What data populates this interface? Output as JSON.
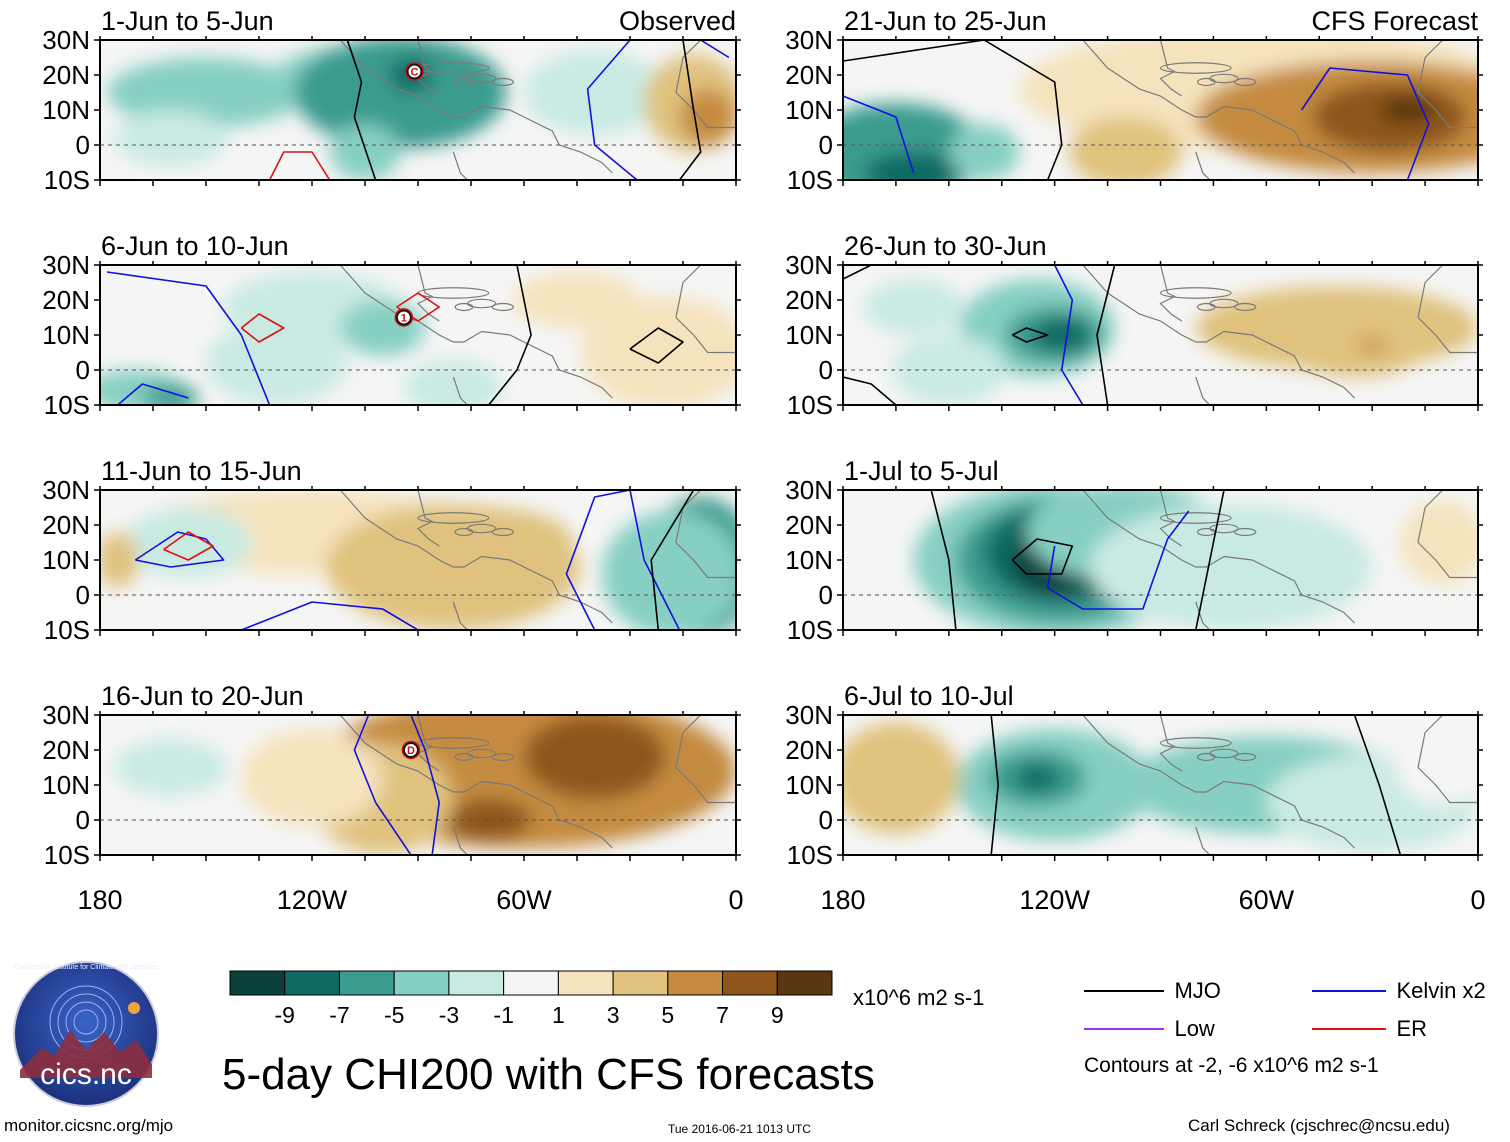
{
  "figure": {
    "title": "5-day CHI200 with CFS forecasts",
    "source_url": "monitor.cicsnc.org/mjo",
    "timestamp": "Tue 2016-06-21 1013 UTC",
    "author": "Carl Schreck (cjschrec@ncsu.edu)",
    "logo": {
      "text": "cics.nc",
      "ring_text": "Cooperative Institute for Climate and Satellites"
    }
  },
  "map": {
    "lat_labels": [
      "30N",
      "20N",
      "10N",
      "0",
      "10S"
    ],
    "lon_labels": [
      "180",
      "120W",
      "60W",
      "0"
    ]
  },
  "colorbar": {
    "tick_labels": [
      "-9",
      "-7",
      "-5",
      "-3",
      "-1",
      "1",
      "3",
      "5",
      "7",
      "9"
    ],
    "units": "x10^6 m2 s-1",
    "colors": [
      "#0b3f3a",
      "#0f6a63",
      "#3a9b8f",
      "#86cfc2",
      "#c9eae3",
      "#f5f5f5",
      "#f5e3bd",
      "#e0c27e",
      "#c58b3f",
      "#8e561a",
      "#5b3711"
    ]
  },
  "legend": {
    "items": [
      {
        "label": "MJO",
        "color": "#000000"
      },
      {
        "label": "Kelvin x2",
        "color": "#1111dd"
      },
      {
        "label": "Low",
        "color": "#9933ee"
      },
      {
        "label": "ER",
        "color": "#dd1111"
      }
    ],
    "note": "Contours at -2, -6 x10^6 m2 s-1"
  },
  "panels": [
    {
      "period": "1-Jun to 5-Jun",
      "label": "Observed",
      "column": "left",
      "row": 0
    },
    {
      "period": "6-Jun to 10-Jun",
      "label": "",
      "column": "left",
      "row": 1
    },
    {
      "period": "11-Jun to 15-Jun",
      "label": "",
      "column": "left",
      "row": 2
    },
    {
      "period": "16-Jun to 20-Jun",
      "label": "",
      "column": "left",
      "row": 3
    },
    {
      "period": "21-Jun to 25-Jun",
      "label": "CFS Forecast",
      "column": "right",
      "row": 0
    },
    {
      "period": "26-Jun to 30-Jun",
      "label": "",
      "column": "right",
      "row": 1
    },
    {
      "period": "1-Jul to 5-Jul",
      "label": "",
      "column": "right",
      "row": 2
    },
    {
      "period": "6-Jul to 10-Jul",
      "label": "",
      "column": "right",
      "row": 3
    }
  ],
  "storm_markers": [
    {
      "letter": "C",
      "panel": 0
    },
    {
      "letter": "1",
      "panel": 1
    },
    {
      "letter": "D",
      "panel": 3
    }
  ]
}
